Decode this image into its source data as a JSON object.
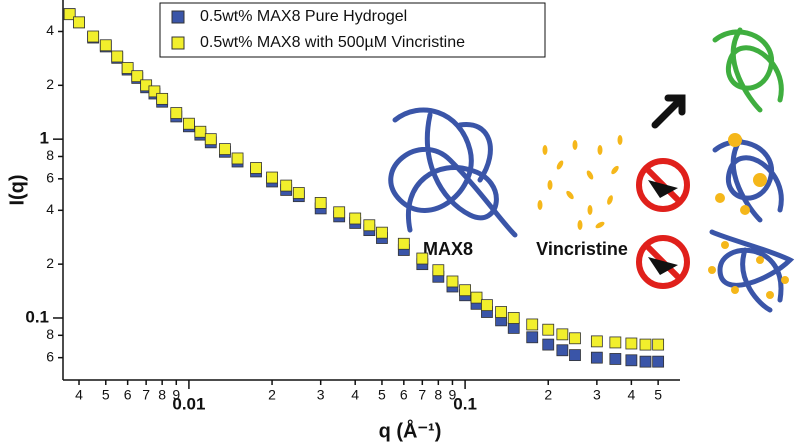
{
  "chart_data": {
    "type": "scatter",
    "x_label": "q (Å⁻¹)",
    "y_label": "I(q)",
    "log_x": true,
    "log_y": true,
    "legend": "top",
    "x": [
      0.0037,
      0.004,
      0.0045,
      0.005,
      0.0055,
      0.006,
      0.0065,
      0.007,
      0.0075,
      0.008,
      0.009,
      0.01,
      0.011,
      0.012,
      0.0135,
      0.015,
      0.0175,
      0.02,
      0.0225,
      0.025,
      0.03,
      0.035,
      0.04,
      0.045,
      0.05,
      0.06,
      0.07,
      0.08,
      0.09,
      0.1,
      0.11,
      0.12,
      0.135,
      0.15,
      0.175,
      0.2,
      0.225,
      0.25,
      0.3,
      0.35,
      0.4,
      0.45,
      0.5
    ],
    "series": [
      {
        "name": "0.5wt% MAX8 Pure Hydrogel",
        "color": "#3a55a8",
        "values": [
          5.0,
          4.5,
          3.7,
          3.3,
          2.85,
          2.45,
          2.2,
          1.95,
          1.8,
          1.62,
          1.34,
          1.18,
          1.06,
          0.96,
          0.85,
          0.75,
          0.66,
          0.58,
          0.52,
          0.48,
          0.41,
          0.37,
          0.34,
          0.31,
          0.28,
          0.24,
          0.2,
          0.17,
          0.15,
          0.134,
          0.12,
          0.108,
          0.097,
          0.088,
          0.078,
          0.071,
          0.066,
          0.062,
          0.06,
          0.059,
          0.058,
          0.057,
          0.057
        ]
      },
      {
        "name": "0.5wt% MAX8 with 500µM Vincristine",
        "color": "#f2ef2c",
        "values": [
          5.0,
          4.5,
          3.75,
          3.35,
          2.9,
          2.5,
          2.25,
          2.0,
          1.85,
          1.68,
          1.4,
          1.22,
          1.1,
          1.0,
          0.88,
          0.78,
          0.69,
          0.61,
          0.55,
          0.5,
          0.44,
          0.39,
          0.36,
          0.33,
          0.3,
          0.26,
          0.215,
          0.185,
          0.16,
          0.143,
          0.13,
          0.118,
          0.108,
          0.1,
          0.092,
          0.086,
          0.081,
          0.077,
          0.074,
          0.073,
          0.072,
          0.071,
          0.071
        ]
      }
    ],
    "xlim": [
      0.0035,
      0.6
    ],
    "ylim": [
      0.045,
      6
    ],
    "xticks": [
      {
        "value": 0.004,
        "label": "4"
      },
      {
        "value": 0.005,
        "label": "5"
      },
      {
        "value": 0.006,
        "label": "6"
      },
      {
        "value": 0.007,
        "label": "7"
      },
      {
        "value": 0.008,
        "label": "8"
      },
      {
        "value": 0.009,
        "label": "9"
      },
      0.01,
      {
        "value": 0.02,
        "label": "2"
      },
      {
        "value": 0.03,
        "label": "3"
      },
      {
        "value": 0.04,
        "label": "4"
      },
      {
        "value": 0.05,
        "label": "5"
      },
      {
        "value": 0.06,
        "label": "6"
      },
      {
        "value": 0.07,
        "label": "7"
      },
      {
        "value": 0.08,
        "label": "8"
      },
      {
        "value": 0.09,
        "label": "9"
      },
      0.1,
      {
        "value": 0.2,
        "label": "2"
      },
      {
        "value": 0.3,
        "label": "3"
      },
      {
        "value": 0.4,
        "label": "4"
      },
      {
        "value": 0.5,
        "label": "5"
      }
    ],
    "yticks": [
      {
        "value": 0.06,
        "label": "6"
      },
      {
        "value": 0.08,
        "label": "8"
      },
      0.1,
      {
        "value": 0.2,
        "label": "2"
      },
      {
        "value": 0.4,
        "label": "4"
      },
      {
        "value": 0.6,
        "label": "6"
      },
      {
        "value": 0.8,
        "label": "8"
      },
      1,
      2,
      4
    ],
    "annotations": [
      "MAX8",
      "Vincristine"
    ]
  }
}
